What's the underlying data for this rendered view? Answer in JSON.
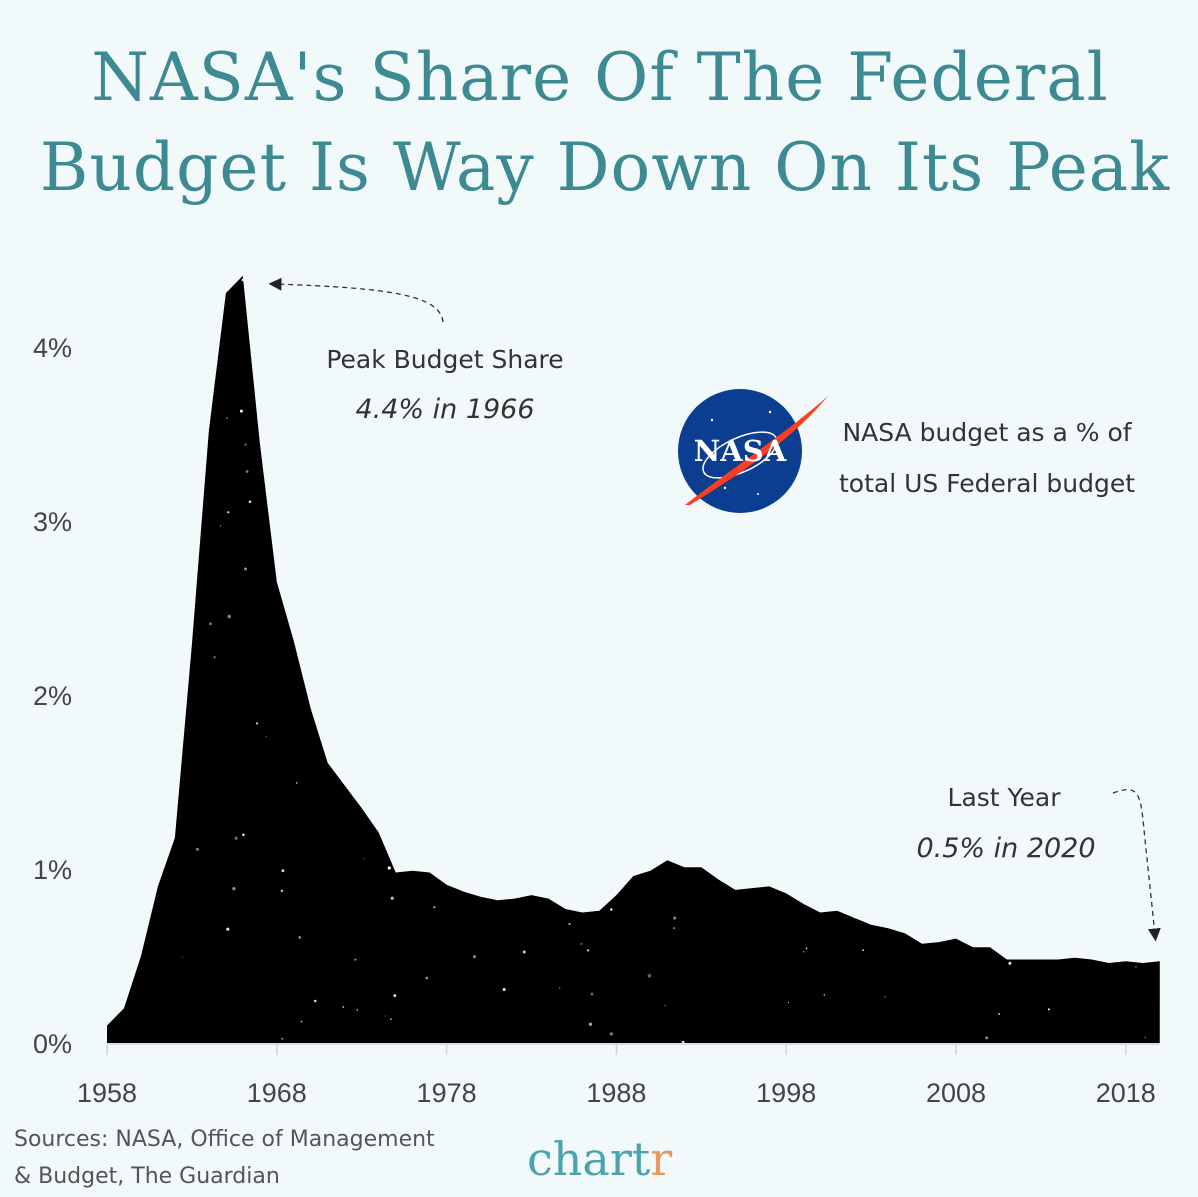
{
  "title_lines": [
    "NASA's Share Of The Federal",
    "Budget Is Way Down On Its Peak"
  ],
  "legend_lines": [
    "NASA budget as a % of",
    "total US Federal budget"
  ],
  "logo_text": "NASA",
  "annotations": {
    "peak_label": "Peak Budget Share",
    "peak_value": "4.4% in 1966",
    "last_label": "Last Year",
    "last_value": "0.5% in 2020"
  },
  "sources_lines": [
    "Sources: NASA, Office of Management",
    "& Budget, The Guardian"
  ],
  "brand": {
    "text_main": "chart",
    "text_accent": "r",
    "color": "#4aa3ad",
    "accent_color": "#e89a5e"
  },
  "colors": {
    "title": "#3d8a93",
    "area": "#000000",
    "background": "#f1f9fb",
    "logo_blue": "#0b3d91",
    "logo_red": "#fc3d21"
  },
  "chart_data": {
    "type": "area",
    "title": "NASA's Share Of The Federal Budget Is Way Down On Its Peak",
    "xlabel": "",
    "ylabel": "",
    "xlim": [
      1958,
      2020
    ],
    "ylim": [
      0,
      4.5
    ],
    "grid": false,
    "x_ticks": [
      "1958",
      "1968",
      "1978",
      "1988",
      "1998",
      "2008",
      "2018"
    ],
    "y_ticks": [
      "0%",
      "1%",
      "2%",
      "3%",
      "4%"
    ],
    "x": [
      1958,
      1959,
      1960,
      1961,
      1962,
      1963,
      1964,
      1965,
      1966,
      1967,
      1968,
      1969,
      1970,
      1971,
      1972,
      1973,
      1974,
      1975,
      1976,
      1977,
      1978,
      1979,
      1980,
      1981,
      1982,
      1983,
      1984,
      1985,
      1986,
      1987,
      1988,
      1989,
      1990,
      1991,
      1992,
      1993,
      1994,
      1995,
      1996,
      1997,
      1998,
      1999,
      2000,
      2001,
      2002,
      2003,
      2004,
      2005,
      2006,
      2007,
      2008,
      2009,
      2010,
      2011,
      2012,
      2013,
      2014,
      2015,
      2016,
      2017,
      2018,
      2019,
      2020
    ],
    "values": [
      0.1,
      0.2,
      0.5,
      0.9,
      1.18,
      2.29,
      3.52,
      4.31,
      4.41,
      3.45,
      2.65,
      2.31,
      1.92,
      1.61,
      1.48,
      1.35,
      1.21,
      0.98,
      0.99,
      0.98,
      0.91,
      0.87,
      0.84,
      0.82,
      0.83,
      0.85,
      0.83,
      0.77,
      0.75,
      0.76,
      0.85,
      0.96,
      0.99,
      1.05,
      1.01,
      1.01,
      0.94,
      0.88,
      0.89,
      0.9,
      0.86,
      0.8,
      0.75,
      0.76,
      0.72,
      0.68,
      0.66,
      0.63,
      0.57,
      0.58,
      0.6,
      0.55,
      0.55,
      0.48,
      0.48,
      0.48,
      0.48,
      0.49,
      0.48,
      0.46,
      0.47,
      0.46,
      0.47
    ]
  }
}
